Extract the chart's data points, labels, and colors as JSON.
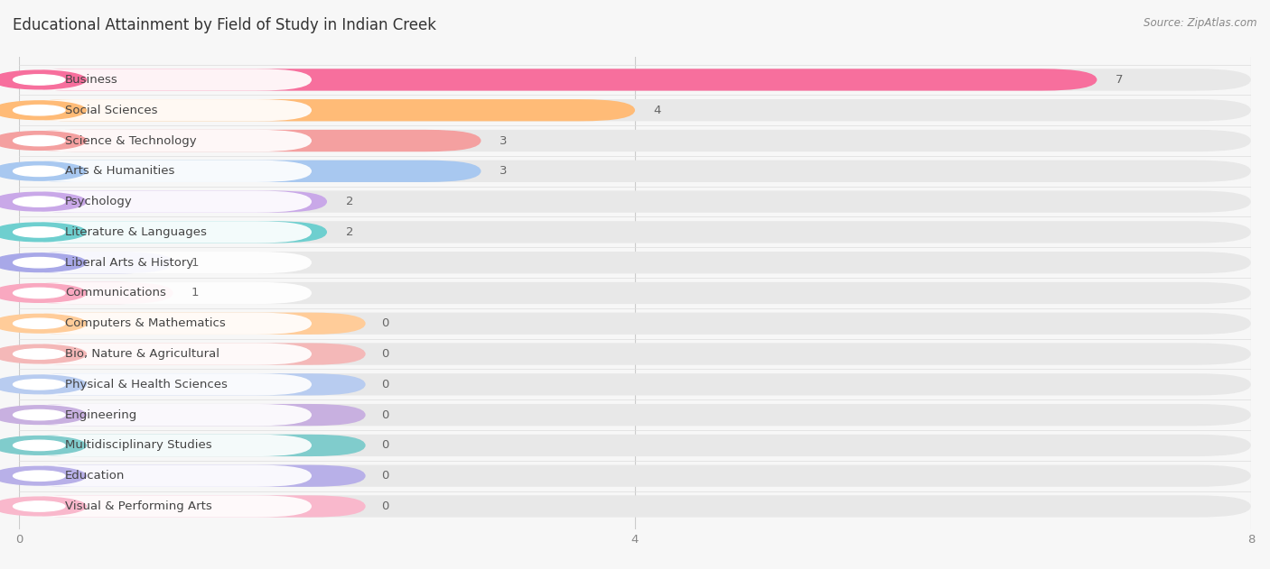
{
  "title": "Educational Attainment by Field of Study in Indian Creek",
  "source": "Source: ZipAtlas.com",
  "categories": [
    "Business",
    "Social Sciences",
    "Science & Technology",
    "Arts & Humanities",
    "Psychology",
    "Literature & Languages",
    "Liberal Arts & History",
    "Communications",
    "Computers & Mathematics",
    "Bio, Nature & Agricultural",
    "Physical & Health Sciences",
    "Engineering",
    "Multidisciplinary Studies",
    "Education",
    "Visual & Performing Arts"
  ],
  "values": [
    7,
    4,
    3,
    3,
    2,
    2,
    1,
    1,
    0,
    0,
    0,
    0,
    0,
    0,
    0
  ],
  "bar_colors": [
    "#F76F9D",
    "#FFBB77",
    "#F4A0A0",
    "#A8C8F0",
    "#C9A8E8",
    "#6ECFCF",
    "#A8A8E8",
    "#F9A8C0",
    "#FFCC99",
    "#F4B8B8",
    "#B8CCF0",
    "#C8B0E0",
    "#80CCCC",
    "#B8B0E8",
    "#F9B8CC"
  ],
  "xlim": [
    0,
    8
  ],
  "xticks": [
    0,
    4,
    8
  ],
  "background_color": "#f7f7f7",
  "bar_background_color": "#e8e8e8",
  "row_background_color": "#f0f0f0",
  "title_fontsize": 12,
  "label_fontsize": 9.5,
  "value_fontsize": 9.5
}
